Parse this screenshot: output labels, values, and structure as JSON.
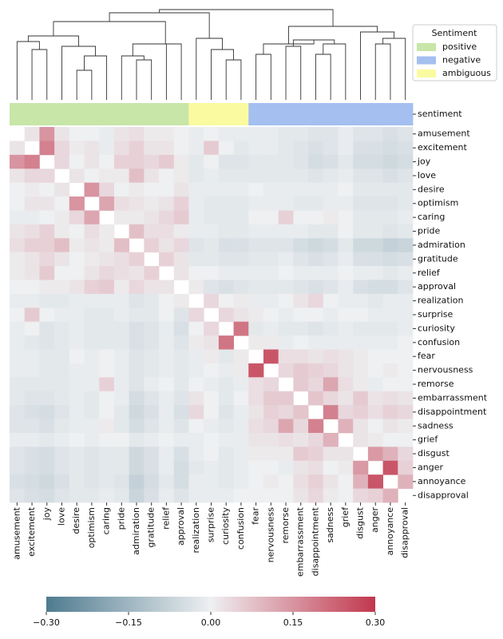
{
  "chart_data": {
    "type": "heatmap",
    "labels": [
      "amusement",
      "excitement",
      "joy",
      "love",
      "desire",
      "optimism",
      "caring",
      "pride",
      "admiration",
      "gratitude",
      "relief",
      "approval",
      "realization",
      "surprise",
      "curiosity",
      "confusion",
      "fear",
      "nervousness",
      "remorse",
      "embarrassment",
      "disappointment",
      "sadness",
      "grief",
      "disgust",
      "anger",
      "annoyance",
      "disapproval"
    ],
    "sentiment_label": "sentiment",
    "sentiment_groups": [
      "positive",
      "positive",
      "positive",
      "positive",
      "positive",
      "positive",
      "positive",
      "positive",
      "positive",
      "positive",
      "positive",
      "positive",
      "ambiguous",
      "ambiguous",
      "ambiguous",
      "ambiguous",
      "negative",
      "negative",
      "negative",
      "negative",
      "negative",
      "negative",
      "negative",
      "negative",
      "negative",
      "negative",
      "negative"
    ],
    "legend": {
      "title": "Sentiment",
      "position": "upper right",
      "entries": [
        {
          "name": "positive",
          "color": "#c8e6a8"
        },
        {
          "name": "negative",
          "color": "#a4bff0"
        },
        {
          "name": "ambiguous",
          "color": "#fafaa0"
        }
      ]
    },
    "colormap": [
      "#4f7b8f",
      "#eef0f2",
      "#c1374d"
    ],
    "vlim": [
      -0.3,
      0.3
    ],
    "colorbar_ticks": [
      {
        "value": -0.3,
        "label": "−0.30"
      },
      {
        "value": -0.15,
        "label": "−0.15"
      },
      {
        "value": 0,
        "label": "0.00"
      },
      {
        "value": 0.15,
        "label": "0.15"
      },
      {
        "value": 0.3,
        "label": "0.30"
      }
    ],
    "values": [
      [
        null,
        0.02,
        0.15,
        0.02,
        0.0,
        0.0,
        -0.01,
        0.02,
        0.03,
        0.01,
        0.01,
        0.0,
        -0.01,
        0.0,
        -0.01,
        -0.01,
        -0.01,
        -0.01,
        -0.02,
        -0.02,
        -0.03,
        -0.03,
        -0.01,
        -0.03,
        -0.03,
        -0.04,
        -0.03
      ],
      [
        0.02,
        null,
        0.18,
        0.04,
        0.01,
        0.02,
        -0.01,
        0.03,
        0.05,
        0.02,
        0.02,
        0.0,
        -0.01,
        0.06,
        0.0,
        -0.02,
        -0.01,
        -0.01,
        -0.02,
        -0.03,
        -0.04,
        -0.03,
        -0.01,
        -0.04,
        -0.04,
        -0.05,
        -0.04
      ],
      [
        0.15,
        0.18,
        null,
        0.04,
        0.0,
        0.02,
        0.0,
        0.05,
        0.05,
        0.04,
        0.06,
        0.01,
        -0.02,
        0.0,
        -0.03,
        -0.03,
        -0.02,
        -0.02,
        -0.02,
        -0.03,
        -0.05,
        -0.04,
        -0.02,
        -0.05,
        -0.05,
        -0.06,
        -0.05
      ],
      [
        0.02,
        0.04,
        0.04,
        null,
        0.02,
        0.0,
        0.01,
        0.01,
        0.08,
        0.02,
        0.0,
        0.01,
        -0.02,
        -0.01,
        -0.02,
        -0.02,
        -0.02,
        -0.02,
        -0.02,
        -0.02,
        -0.03,
        -0.02,
        -0.01,
        -0.03,
        -0.03,
        -0.04,
        -0.03
      ],
      [
        0.0,
        0.01,
        0.0,
        0.02,
        null,
        0.15,
        0.04,
        0.0,
        0.01,
        0.0,
        0.0,
        0.02,
        -0.01,
        -0.01,
        -0.01,
        -0.01,
        0.0,
        -0.01,
        -0.01,
        -0.01,
        -0.01,
        -0.01,
        0.0,
        -0.02,
        -0.02,
        -0.02,
        -0.02
      ],
      [
        0.0,
        0.02,
        0.02,
        0.0,
        0.15,
        null,
        0.12,
        0.03,
        0.02,
        0.01,
        0.02,
        0.05,
        -0.01,
        -0.02,
        -0.02,
        -0.02,
        -0.01,
        -0.01,
        -0.01,
        -0.02,
        -0.02,
        -0.01,
        -0.01,
        -0.03,
        -0.03,
        -0.03,
        -0.02
      ],
      [
        -0.01,
        -0.01,
        0.0,
        0.01,
        0.04,
        0.12,
        null,
        0.01,
        0.01,
        0.02,
        0.04,
        0.06,
        -0.01,
        -0.02,
        -0.02,
        -0.02,
        0.0,
        0.0,
        0.05,
        0.0,
        0.0,
        0.01,
        0.0,
        -0.02,
        -0.02,
        -0.02,
        -0.01
      ],
      [
        0.02,
        0.03,
        0.05,
        0.01,
        0.0,
        0.03,
        0.01,
        null,
        0.08,
        0.03,
        0.03,
        0.01,
        -0.01,
        -0.01,
        -0.02,
        -0.02,
        -0.01,
        -0.01,
        -0.01,
        -0.01,
        -0.02,
        -0.02,
        0.0,
        -0.02,
        -0.02,
        -0.03,
        -0.02
      ],
      [
        0.03,
        0.05,
        0.05,
        0.08,
        0.01,
        0.02,
        0.01,
        0.08,
        null,
        0.05,
        0.02,
        0.04,
        -0.03,
        -0.02,
        -0.04,
        -0.04,
        -0.03,
        -0.03,
        -0.03,
        -0.05,
        -0.06,
        -0.05,
        -0.02,
        -0.06,
        -0.06,
        -0.08,
        -0.07
      ],
      [
        0.01,
        0.02,
        0.04,
        0.02,
        0.0,
        0.01,
        0.02,
        0.03,
        0.05,
        null,
        0.05,
        0.02,
        -0.02,
        -0.02,
        -0.03,
        -0.03,
        -0.02,
        -0.02,
        -0.01,
        -0.03,
        -0.04,
        -0.03,
        -0.01,
        -0.04,
        -0.04,
        -0.05,
        -0.04
      ],
      [
        0.01,
        0.02,
        0.06,
        0.0,
        0.0,
        0.02,
        0.04,
        0.03,
        0.02,
        0.05,
        null,
        0.02,
        0.0,
        0.0,
        -0.01,
        -0.01,
        -0.01,
        -0.01,
        0.0,
        -0.01,
        -0.01,
        -0.01,
        0.0,
        -0.01,
        -0.01,
        -0.02,
        -0.01
      ],
      [
        0.0,
        0.0,
        0.01,
        0.01,
        0.02,
        0.05,
        0.06,
        0.01,
        0.04,
        0.02,
        0.02,
        null,
        0.01,
        -0.03,
        -0.04,
        -0.03,
        -0.02,
        -0.02,
        -0.02,
        -0.03,
        -0.04,
        -0.03,
        -0.01,
        -0.04,
        -0.05,
        -0.05,
        -0.03
      ],
      [
        -0.01,
        -0.01,
        -0.02,
        -0.02,
        -0.01,
        -0.01,
        -0.01,
        -0.01,
        -0.03,
        -0.02,
        0.0,
        0.01,
        null,
        0.04,
        0.0,
        0.01,
        -0.01,
        -0.01,
        0.0,
        0.02,
        0.04,
        0.0,
        -0.01,
        -0.01,
        -0.02,
        -0.01,
        -0.01
      ],
      [
        0.0,
        0.06,
        0.0,
        -0.01,
        -0.01,
        -0.02,
        -0.02,
        -0.01,
        -0.02,
        -0.02,
        0.0,
        -0.03,
        0.04,
        null,
        0.04,
        0.02,
        0.01,
        0.0,
        -0.01,
        0.0,
        0.0,
        -0.01,
        0.0,
        0.0,
        -0.01,
        -0.01,
        -0.01
      ],
      [
        -0.01,
        0.0,
        -0.03,
        -0.02,
        -0.01,
        -0.02,
        -0.02,
        -0.02,
        -0.04,
        -0.03,
        -0.01,
        -0.04,
        0.0,
        0.04,
        null,
        0.2,
        -0.02,
        -0.01,
        -0.02,
        -0.02,
        -0.03,
        -0.02,
        -0.01,
        -0.02,
        -0.02,
        -0.02,
        -0.01
      ],
      [
        -0.01,
        -0.02,
        -0.03,
        -0.02,
        -0.01,
        -0.02,
        -0.02,
        -0.02,
        -0.04,
        -0.03,
        -0.01,
        -0.03,
        0.01,
        0.02,
        0.2,
        null,
        0.01,
        0.01,
        -0.01,
        0.0,
        -0.01,
        -0.01,
        -0.01,
        -0.01,
        -0.01,
        -0.01,
        0.0
      ],
      [
        -0.01,
        -0.01,
        -0.02,
        -0.02,
        0.0,
        -0.01,
        0.0,
        -0.01,
        -0.03,
        -0.02,
        -0.01,
        -0.02,
        -0.01,
        0.01,
        -0.02,
        0.01,
        null,
        0.25,
        0.03,
        0.03,
        0.02,
        0.03,
        0.02,
        0.01,
        0.0,
        0.0,
        0.0
      ],
      [
        -0.01,
        -0.01,
        -0.02,
        -0.02,
        -0.01,
        -0.01,
        0.0,
        -0.01,
        -0.03,
        -0.02,
        -0.01,
        -0.02,
        -0.01,
        0.0,
        -0.01,
        0.01,
        0.25,
        null,
        0.04,
        0.06,
        0.05,
        0.04,
        0.02,
        0.01,
        0.0,
        0.01,
        0.0
      ],
      [
        -0.02,
        -0.02,
        -0.02,
        -0.02,
        -0.01,
        -0.01,
        0.05,
        -0.01,
        -0.03,
        -0.01,
        0.0,
        -0.02,
        0.0,
        -0.01,
        -0.02,
        -0.01,
        0.03,
        0.04,
        null,
        0.06,
        0.04,
        0.12,
        0.03,
        0.01,
        -0.01,
        0.0,
        0.0
      ],
      [
        -0.02,
        -0.03,
        -0.03,
        -0.02,
        -0.01,
        -0.02,
        0.0,
        -0.01,
        -0.05,
        -0.03,
        -0.01,
        -0.03,
        0.02,
        0.0,
        -0.02,
        0.0,
        0.03,
        0.06,
        0.06,
        null,
        0.07,
        0.04,
        0.02,
        0.06,
        0.02,
        0.03,
        0.02
      ],
      [
        -0.03,
        -0.04,
        -0.05,
        -0.03,
        -0.01,
        -0.02,
        0.0,
        -0.02,
        -0.06,
        -0.04,
        -0.01,
        -0.04,
        0.04,
        0.0,
        -0.03,
        -0.01,
        0.02,
        0.05,
        0.04,
        0.07,
        null,
        0.18,
        0.04,
        0.05,
        0.03,
        0.05,
        0.04
      ],
      [
        -0.03,
        -0.03,
        -0.04,
        -0.02,
        -0.01,
        -0.01,
        0.01,
        -0.02,
        -0.05,
        -0.03,
        -0.01,
        -0.03,
        0.0,
        -0.01,
        -0.02,
        -0.01,
        0.03,
        0.04,
        0.12,
        0.04,
        0.18,
        null,
        0.1,
        0.02,
        0.0,
        0.02,
        0.01
      ],
      [
        -0.01,
        -0.01,
        -0.02,
        -0.01,
        0.0,
        -0.01,
        0.0,
        0.0,
        -0.02,
        -0.01,
        0.0,
        -0.01,
        -0.01,
        0.0,
        -0.01,
        -0.01,
        0.02,
        0.02,
        0.03,
        0.02,
        0.04,
        0.1,
        null,
        0.02,
        0.01,
        0.0,
        0.0
      ],
      [
        -0.03,
        -0.04,
        -0.05,
        -0.03,
        -0.02,
        -0.03,
        -0.02,
        -0.02,
        -0.06,
        -0.04,
        -0.01,
        -0.04,
        -0.01,
        0.0,
        -0.02,
        -0.01,
        0.01,
        0.01,
        0.01,
        0.06,
        0.05,
        0.02,
        0.02,
        null,
        0.14,
        0.1,
        0.04
      ],
      [
        -0.03,
        -0.04,
        -0.05,
        -0.03,
        -0.02,
        -0.03,
        -0.02,
        -0.02,
        -0.06,
        -0.04,
        -0.01,
        -0.05,
        -0.02,
        -0.01,
        -0.02,
        -0.01,
        0.0,
        0.0,
        -0.01,
        0.02,
        0.03,
        0.0,
        0.01,
        0.14,
        null,
        0.25,
        0.05
      ],
      [
        -0.04,
        -0.05,
        -0.06,
        -0.04,
        -0.02,
        -0.03,
        -0.02,
        -0.03,
        -0.08,
        -0.05,
        -0.02,
        -0.05,
        -0.01,
        -0.01,
        -0.02,
        -0.01,
        0.0,
        0.01,
        0.0,
        0.03,
        0.05,
        0.02,
        0.0,
        0.1,
        0.25,
        null,
        0.1
      ],
      [
        -0.03,
        -0.04,
        -0.05,
        -0.03,
        -0.02,
        -0.02,
        -0.01,
        -0.02,
        -0.07,
        -0.04,
        -0.01,
        -0.03,
        -0.01,
        -0.01,
        -0.01,
        0.0,
        0.0,
        0.0,
        0.0,
        0.02,
        0.04,
        0.01,
        0.0,
        0.04,
        0.05,
        0.1,
        null
      ]
    ]
  }
}
